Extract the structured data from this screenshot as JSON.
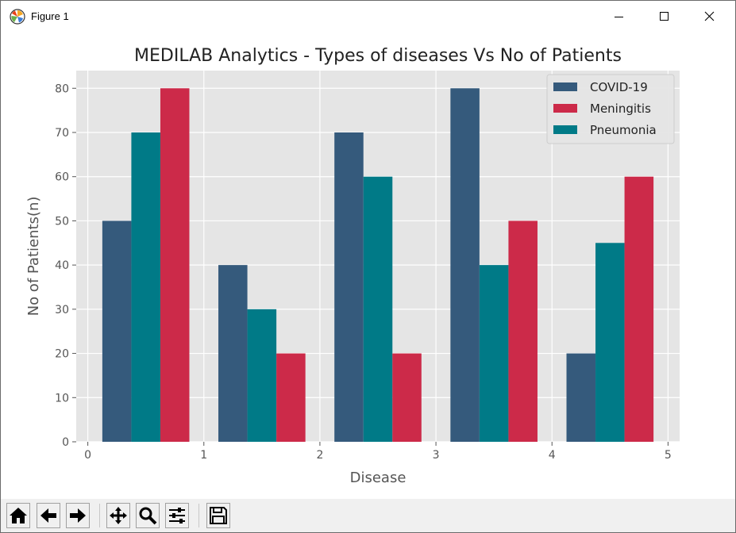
{
  "window": {
    "title": "Figure 1",
    "controls": [
      "minimize-icon",
      "maximize-icon",
      "close-icon"
    ]
  },
  "toolbar": {
    "tools": [
      {
        "name": "home-button",
        "icon": "home-icon"
      },
      {
        "name": "back-button",
        "icon": "arrow-left-icon"
      },
      {
        "name": "forward-button",
        "icon": "arrow-right-icon"
      },
      {
        "name": "pan-button",
        "icon": "move-icon"
      },
      {
        "name": "zoom-button",
        "icon": "magnifier-icon"
      },
      {
        "name": "subplots-button",
        "icon": "sliders-icon"
      },
      {
        "name": "save-button",
        "icon": "floppy-disk-icon"
      }
    ]
  },
  "chart_data": {
    "type": "bar",
    "title": "MEDILAB Analytics - Types of diseases Vs No of Patients",
    "xlabel": "Disease",
    "ylabel": "No of Patients(n)",
    "x_ticks": [
      "0",
      "1",
      "2",
      "3",
      "4",
      "5"
    ],
    "y_ticks": [
      "0",
      "10",
      "20",
      "30",
      "40",
      "50",
      "60",
      "70",
      "80"
    ],
    "xlim": [
      -0.1,
      5.1
    ],
    "ylim": [
      0,
      84
    ],
    "grid": true,
    "style": "ggplot",
    "legend_position": "upper right",
    "bar_width": 0.25,
    "group_centers": [
      0.5,
      1.5,
      2.5,
      3.5,
      4.5
    ],
    "series": [
      {
        "name": "COVID-19",
        "color": "#355a7c",
        "values": [
          50,
          40,
          70,
          80,
          20
        ]
      },
      {
        "name": "Pneumonia",
        "color": "#007a87",
        "values": [
          70,
          30,
          60,
          40,
          45
        ]
      },
      {
        "name": "Meningitis",
        "color": "#cc2a49",
        "values": [
          80,
          20,
          20,
          50,
          60
        ]
      }
    ],
    "legend_order": [
      "COVID-19",
      "Meningitis",
      "Pneumonia"
    ]
  }
}
